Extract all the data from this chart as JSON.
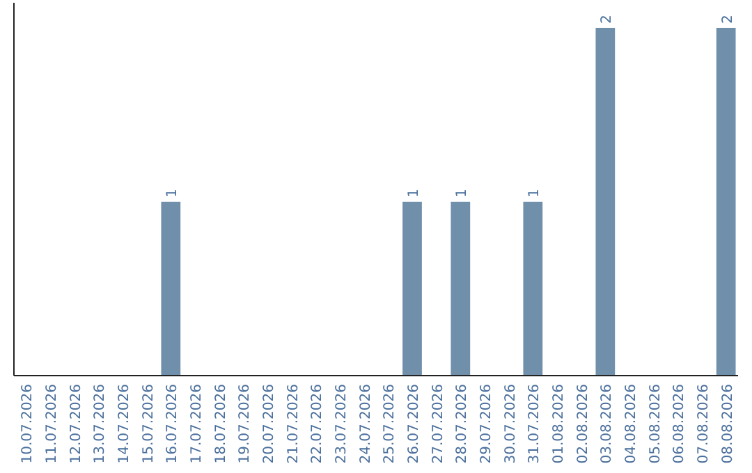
{
  "chart_data": {
    "type": "bar",
    "categories": [
      "10.07.2026",
      "11.07.2026",
      "12.07.2026",
      "13.07.2026",
      "14.07.2026",
      "15.07.2026",
      "16.07.2026",
      "17.07.2026",
      "18.07.2026",
      "19.07.2026",
      "20.07.2026",
      "21.07.2026",
      "22.07.2026",
      "23.07.2026",
      "24.07.2026",
      "25.07.2026",
      "26.07.2026",
      "27.07.2026",
      "28.07.2026",
      "29.07.2026",
      "30.07.2026",
      "31.07.2026",
      "01.08.2026",
      "02.08.2026",
      "03.08.2026",
      "04.08.2026",
      "05.08.2026",
      "06.08.2026",
      "07.08.2026",
      "08.08.2026"
    ],
    "values": [
      0,
      0,
      0,
      0,
      0,
      0,
      1,
      0,
      0,
      0,
      0,
      0,
      0,
      0,
      0,
      0,
      1,
      0,
      1,
      0,
      0,
      1,
      0,
      0,
      2,
      0,
      0,
      0,
      0,
      2
    ],
    "value_labels": [
      null,
      null,
      null,
      null,
      null,
      null,
      "1",
      null,
      null,
      null,
      null,
      null,
      null,
      null,
      null,
      null,
      "1",
      null,
      "1",
      null,
      null,
      "1",
      null,
      null,
      "2",
      null,
      null,
      null,
      null,
      "2"
    ],
    "color": "#6f8fab"
  }
}
